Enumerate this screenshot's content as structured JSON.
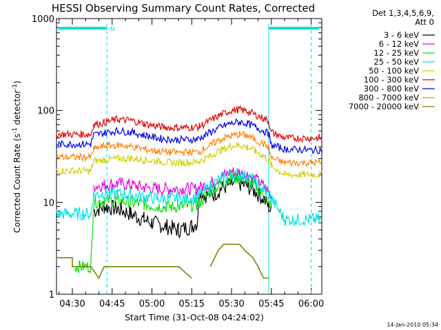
{
  "chart_data": {
    "type": "line",
    "title": "HESSI Observing Summary Count Rates, Corrected",
    "xlabel": "Start Time (31-Oct-08 04:24:02)",
    "ylabel": "Corrected Count Rate (s⁻¹ detector⁻¹)",
    "ylabel_main": "Corrected Count Rate (s",
    "ylabel_exp1": "-1",
    "ylabel_mid": " detector",
    "ylabel_exp2": "-1",
    "ylabel_end": ")",
    "footer": "14-Jan-2010 05:34",
    "legend_header": [
      "Det 1,3,4,5,6,9,",
      "Att 0"
    ],
    "legend_position": "top-right outside plot",
    "x_ticks": [
      "04:30",
      "04:45",
      "05:00",
      "05:15",
      "05:30",
      "05:45",
      "06:00"
    ],
    "y_ticks": [
      "1",
      "10",
      "100",
      "1000"
    ],
    "y_scale": "log",
    "xlim": [
      "04:24:02",
      "06:04"
    ],
    "ylim": [
      1,
      1000
    ],
    "night_marker_label": "N",
    "series": [
      {
        "name": "3 - 6 keV",
        "color": "#000000",
        "x": [
          "04:32",
          "04:37",
          "04:38",
          "04:42",
          "04:47",
          "04:52",
          "04:57",
          "05:00",
          "05:05",
          "05:10",
          "05:15",
          "05:17",
          "05:18",
          "05:20",
          "05:23",
          "05:26",
          "05:30",
          "05:33",
          "05:36",
          "05:39",
          "05:42",
          "05:44",
          "05:45"
        ],
        "y": [
          null,
          null,
          8,
          9,
          8.5,
          7.5,
          6.5,
          6,
          5.5,
          5,
          5.5,
          6,
          14,
          12,
          12,
          14,
          16,
          16,
          15,
          13,
          11,
          9,
          8
        ]
      },
      {
        "name": "6 - 12 keV",
        "color": "#e000e0",
        "x": [
          "04:37",
          "04:38",
          "04:42",
          "04:47",
          "04:52",
          "04:57",
          "05:02",
          "05:07",
          "05:12",
          "05:17",
          "05:18",
          "05:22",
          "05:26",
          "05:30",
          "05:33",
          "05:36",
          "05:39",
          "05:42",
          "05:44",
          "05:45"
        ],
        "y": [
          null,
          15,
          15.5,
          16,
          15.5,
          14.5,
          14,
          14,
          14,
          14,
          14.5,
          16,
          19,
          21.5,
          21,
          20,
          18,
          15,
          13,
          12
        ]
      },
      {
        "name": "12 - 25 keV",
        "color": "#00e000",
        "x": [
          "04:31",
          "04:37",
          "04:38",
          "04:42",
          "04:47",
          "04:52",
          "04:57",
          "05:02",
          "05:07",
          "05:12",
          "05:17",
          "05:18",
          "05:22",
          "05:26",
          "05:30",
          "05:33",
          "05:36",
          "05:39",
          "05:42",
          "05:44",
          "05:45"
        ],
        "y": [
          2,
          2,
          10,
          10.5,
          10.5,
          10,
          9.5,
          9,
          9,
          9,
          9.5,
          10,
          13,
          16,
          18.5,
          18.5,
          17,
          15,
          12,
          10,
          9
        ]
      },
      {
        "name": "25 - 50 keV",
        "color": "#00e0e0",
        "x": [
          "04:24",
          "04:37",
          "04:38",
          "04:42",
          "04:47",
          "04:52",
          "04:57",
          "05:02",
          "05:07",
          "05:12",
          "05:17",
          "05:18",
          "05:22",
          "05:26",
          "05:30",
          "05:33",
          "05:36",
          "05:39",
          "05:42",
          "05:44",
          "05:45",
          "05:50",
          "06:00",
          "06:04"
        ],
        "y": [
          7.5,
          7.5,
          12,
          12.5,
          12.5,
          12,
          11.5,
          11,
          11,
          11,
          11.5,
          12,
          15,
          18,
          20,
          20,
          19,
          17,
          14,
          12,
          11,
          6.5,
          6.5,
          6.5
        ]
      },
      {
        "name": "50 - 100 keV",
        "color": "#d0d000",
        "x": [
          "04:24",
          "04:37",
          "04:38",
          "04:42",
          "04:47",
          "04:52",
          "04:57",
          "05:02",
          "05:07",
          "05:12",
          "05:17",
          "05:18",
          "05:22",
          "05:26",
          "05:30",
          "05:33",
          "05:36",
          "05:39",
          "05:42",
          "05:44",
          "05:45",
          "05:50",
          "06:00",
          "06:04"
        ],
        "y": [
          22,
          22,
          28,
          29,
          30,
          30,
          29,
          28,
          27,
          27,
          27.5,
          28,
          32,
          37,
          41,
          42,
          40,
          36,
          32,
          29,
          25,
          20,
          20,
          20
        ]
      },
      {
        "name": "100 - 300 keV",
        "color": "#e00000",
        "x": [
          "04:24",
          "04:37",
          "04:38",
          "04:42",
          "04:47",
          "04:52",
          "04:57",
          "05:02",
          "05:07",
          "05:12",
          "05:17",
          "05:18",
          "05:22",
          "05:26",
          "05:30",
          "05:33",
          "05:36",
          "05:39",
          "05:42",
          "05:44",
          "05:45",
          "05:50",
          "06:00",
          "06:04"
        ],
        "y": [
          55,
          55,
          70,
          74,
          80,
          78,
          72,
          67,
          65,
          65,
          66,
          67,
          78,
          90,
          100,
          102,
          98,
          90,
          82,
          77,
          58,
          50,
          50,
          50
        ]
      },
      {
        "name": "300 - 800 keV",
        "color": "#0000e0",
        "x": [
          "04:24",
          "04:37",
          "04:38",
          "04:42",
          "04:47",
          "04:52",
          "04:57",
          "05:02",
          "05:07",
          "05:12",
          "05:17",
          "05:18",
          "05:22",
          "05:26",
          "05:30",
          "05:33",
          "05:36",
          "05:39",
          "05:42",
          "05:44",
          "05:45",
          "05:50",
          "06:00",
          "06:04"
        ],
        "y": [
          43,
          43,
          54,
          57,
          60,
          58,
          54,
          50,
          48,
          48,
          48.5,
          50,
          58,
          66,
          73,
          75,
          72,
          66,
          60,
          56,
          42,
          38,
          37,
          37
        ]
      },
      {
        "name": "800 - 7000 keV",
        "color": "#ff8000",
        "x": [
          "04:24",
          "04:37",
          "04:38",
          "04:42",
          "04:47",
          "04:52",
          "04:57",
          "05:02",
          "05:07",
          "05:12",
          "05:17",
          "05:18",
          "05:22",
          "05:26",
          "05:30",
          "05:33",
          "05:36",
          "05:39",
          "05:42",
          "05:44",
          "05:45",
          "05:50",
          "06:00",
          "06:04"
        ],
        "y": [
          31,
          31,
          38,
          41,
          42,
          41,
          38,
          36,
          35,
          35,
          35.5,
          36,
          42,
          49,
          53,
          55,
          53,
          48,
          43,
          40,
          30,
          27,
          27,
          27
        ]
      },
      {
        "name": "7000 - 20000 keV",
        "color": "#808000",
        "x": [
          "04:24",
          "04:30",
          "04:30",
          "04:37",
          "04:40",
          "04:42",
          "05:00",
          "05:10",
          "05:15",
          "05:20",
          "05:22",
          "05:25",
          "05:27",
          "05:31",
          "05:33",
          "05:35",
          "05:38",
          "05:40",
          "05:42",
          "05:44",
          "05:45"
        ],
        "y": [
          2.5,
          2.5,
          2,
          2,
          1.5,
          2,
          2,
          2,
          1.5,
          null,
          2,
          3,
          3.5,
          3.5,
          3.5,
          3,
          2.5,
          2,
          1.5,
          1.5,
          null
        ]
      }
    ]
  }
}
